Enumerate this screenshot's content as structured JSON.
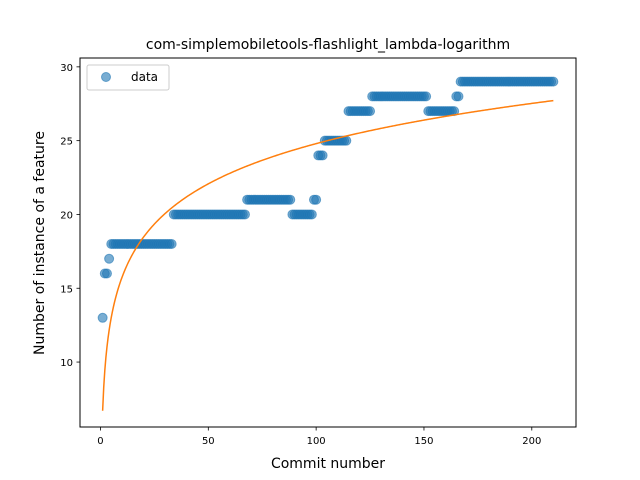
{
  "chart_data": {
    "type": "scatter",
    "title": "com-simplemobiletools-flashlight_lambda-logarithm",
    "xlabel": "Commit number",
    "ylabel": "Number of instance of a feature",
    "xlim": [
      -9.5,
      220.5
    ],
    "ylim": [
      5.6,
      30.6
    ],
    "xticks": [
      0,
      50,
      100,
      150,
      200
    ],
    "yticks": [
      10,
      15,
      20,
      25,
      30
    ],
    "grid": false,
    "legend_position": "top-left",
    "colors": {
      "data": "#1f77b4",
      "fit": "#ff7f0e"
    },
    "series": [
      {
        "name": "data",
        "kind": "scatter",
        "segments": [
          {
            "x_start": 1,
            "x_end": 1,
            "y": 13
          },
          {
            "x_start": 2,
            "x_end": 3,
            "y": 16
          },
          {
            "x_start": 4,
            "x_end": 4,
            "y": 17
          },
          {
            "x_start": 5,
            "x_end": 33,
            "y": 18
          },
          {
            "x_start": 34,
            "x_end": 67,
            "y": 20
          },
          {
            "x_start": 68,
            "x_end": 88,
            "y": 21
          },
          {
            "x_start": 89,
            "x_end": 98,
            "y": 20
          },
          {
            "x_start": 99,
            "x_end": 100,
            "y": 21
          },
          {
            "x_start": 101,
            "x_end": 103,
            "y": 24
          },
          {
            "x_start": 104,
            "x_end": 114,
            "y": 25
          },
          {
            "x_start": 115,
            "x_end": 125,
            "y": 27
          },
          {
            "x_start": 126,
            "x_end": 151,
            "y": 28
          },
          {
            "x_start": 152,
            "x_end": 164,
            "y": 27
          },
          {
            "x_start": 165,
            "x_end": 166,
            "y": 28
          },
          {
            "x_start": 167,
            "x_end": 210,
            "y": 29
          }
        ]
      },
      {
        "kind": "line",
        "formula": "y = a + b*ln(x)",
        "a": 6.7,
        "b": 3.93,
        "x_range": [
          1,
          210
        ]
      }
    ]
  }
}
